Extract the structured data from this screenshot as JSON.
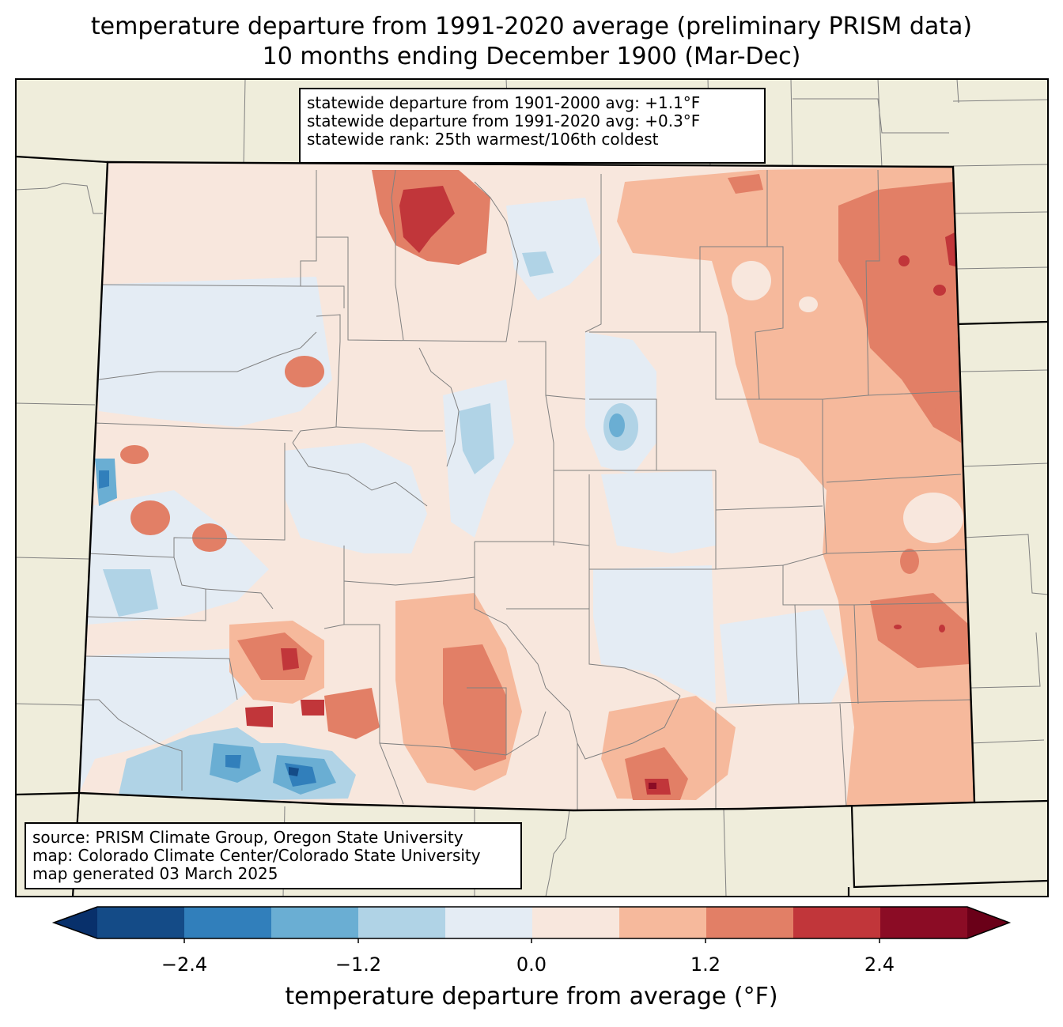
{
  "title": {
    "line1": "temperature departure from 1991-2020 average (preliminary PRISM data)",
    "line2": "10 months ending December 1900 (Mar-Dec)"
  },
  "stats": {
    "line1": "statewide departure from 1901-2000 avg: +1.1°F",
    "line2": "statewide departure from 1991-2020 avg: +0.3°F",
    "line3": "statewide rank: 25th warmest/106th coldest"
  },
  "source": {
    "line1": "source: PRISM Climate Group, Oregon State University",
    "line2": "map: Colorado Climate Center/Colorado State University",
    "line3": "map generated 03 March 2025"
  },
  "colorbar": {
    "label": "temperature departure from average (°F)",
    "ticks": [
      "−2.4",
      "−1.2",
      "0.0",
      "1.2",
      "2.4"
    ],
    "colors": [
      "#08306b",
      "#144b87",
      "#317fbb",
      "#6aaed3",
      "#b0d3e6",
      "#e4ecf4",
      "#f8e7dd",
      "#f6b99c",
      "#e27f66",
      "#c1363a",
      "#8b0c25",
      "#6a0018"
    ]
  },
  "colors": {
    "background_land": "#efeddb",
    "state_fill": "#f8e7dd",
    "county_lines": "#808080",
    "state_border": "#000000"
  }
}
